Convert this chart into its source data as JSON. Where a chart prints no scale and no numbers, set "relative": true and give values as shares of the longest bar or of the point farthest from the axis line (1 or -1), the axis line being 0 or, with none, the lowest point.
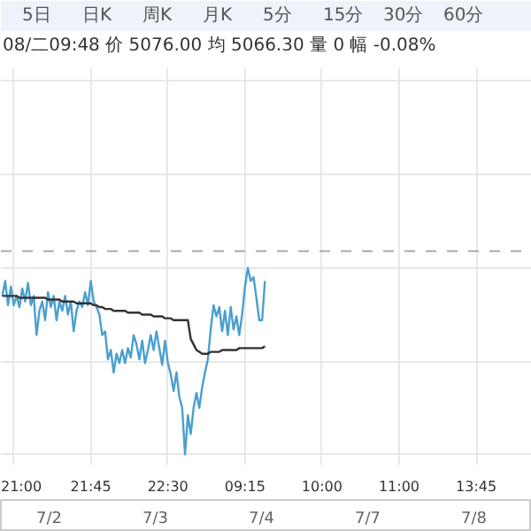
{
  "chart_data": {
    "type": "line",
    "relative": true,
    "categories": [
      null,
      null,
      null,
      null,
      "21:00",
      null,
      null,
      null,
      null,
      null,
      null,
      null,
      null,
      null,
      null,
      null,
      null,
      null,
      null,
      null,
      null,
      null,
      null,
      null,
      null,
      null,
      null,
      null,
      null,
      null,
      null,
      "21:45",
      null,
      null,
      null,
      null,
      null,
      null,
      null,
      null,
      null,
      null,
      null,
      null,
      null,
      null,
      null,
      null,
      null,
      null,
      null,
      null,
      null,
      null,
      null,
      null,
      null,
      null,
      "22:30",
      null,
      null,
      null,
      null,
      null,
      null,
      null,
      null,
      null,
      null,
      null,
      null,
      null,
      null,
      null,
      null,
      null,
      null,
      null,
      null,
      null,
      null,
      null,
      null,
      null,
      null,
      "09:15",
      null,
      null,
      null,
      null,
      null,
      null,
      null,
      null,
      null,
      null,
      null,
      null,
      null,
      null,
      null,
      null,
      null,
      null,
      null,
      null,
      null,
      null,
      null,
      null,
      null,
      null,
      "10:00",
      null,
      null,
      null,
      null,
      null,
      null,
      null,
      null,
      null,
      null,
      null,
      null,
      null,
      null,
      null,
      null,
      null,
      null,
      null,
      null,
      null,
      null,
      null,
      null,
      null,
      null,
      "11:00",
      null,
      null,
      null,
      null,
      null,
      null,
      null,
      null,
      null,
      null,
      null,
      null,
      null,
      null,
      null,
      null,
      null,
      null,
      null,
      null,
      null,
      null,
      null,
      null,
      null,
      null,
      "13:45",
      null,
      null,
      null,
      null,
      null,
      null,
      null,
      null,
      null,
      null,
      null,
      null,
      null,
      null,
      null,
      null,
      null,
      null,
      null
    ],
    "series": [
      {
        "color": "#4a9fd0",
        "values": [
          0.85,
          0.93,
          0.8,
          0.9,
          0.8,
          0.85,
          0.79,
          0.89,
          0.82,
          0.92,
          0.8,
          0.85,
          0.64,
          0.77,
          0.82,
          0.72,
          0.87,
          0.79,
          0.85,
          0.72,
          0.82,
          0.77,
          0.85,
          0.75,
          0.82,
          0.66,
          0.77,
          0.82,
          0.79,
          0.87,
          0.8,
          0.93,
          0.82,
          0.79,
          0.75,
          0.64,
          0.66,
          0.51,
          0.56,
          0.44,
          0.54,
          0.49,
          0.56,
          0.49,
          0.57,
          0.52,
          0.64,
          0.59,
          0.51,
          0.61,
          0.49,
          0.56,
          0.64,
          0.56,
          0.66,
          0.57,
          0.48,
          0.61,
          0.49,
          0.43,
          0.34,
          0.44,
          0.31,
          0.25,
          0,
          0.21,
          0.11,
          0.25,
          0.33,
          0.25,
          0.36,
          0.44,
          0.51,
          0.67,
          0.8,
          0.74,
          0.79,
          0.66,
          0.77,
          0.64,
          0.79,
          0.67,
          0.74,
          0.64,
          0.75,
          0.9,
          1,
          0.93,
          0.95,
          0.84,
          0.72,
          0.72,
          0.93,
          null,
          null,
          null,
          null,
          null,
          null,
          null,
          null,
          null,
          null,
          null,
          null,
          null,
          null,
          null,
          null,
          null,
          null,
          null,
          null,
          null,
          null,
          null,
          null,
          null,
          null,
          null,
          null,
          null,
          null,
          null,
          null,
          null,
          null,
          null,
          null,
          null,
          null,
          null,
          null,
          null,
          null,
          null,
          null,
          null,
          null,
          null,
          null,
          null,
          null,
          null,
          null,
          null,
          null,
          null,
          null,
          null,
          null,
          null,
          null,
          null,
          null,
          null,
          null,
          null,
          null,
          null,
          null,
          null,
          null,
          null,
          null,
          null,
          null,
          null,
          null,
          null,
          null,
          null,
          null,
          null,
          null,
          null,
          null,
          null,
          null,
          null,
          null,
          null,
          null,
          null,
          null,
          null
        ]
      },
      {
        "color": "#333333",
        "values": [
          0.85,
          0.85,
          0.85,
          0.85,
          0.85,
          0.85,
          0.84,
          0.84,
          0.84,
          0.84,
          0.84,
          0.84,
          0.84,
          0.84,
          0.84,
          0.84,
          0.83,
          0.83,
          0.83,
          0.83,
          0.83,
          0.82,
          0.82,
          0.82,
          0.82,
          0.82,
          0.81,
          0.81,
          0.81,
          0.81,
          0.81,
          0.81,
          0.8,
          0.8,
          0.79,
          0.79,
          0.78,
          0.78,
          0.78,
          0.77,
          0.77,
          0.77,
          0.77,
          0.77,
          0.76,
          0.76,
          0.76,
          0.76,
          0.76,
          0.75,
          0.75,
          0.75,
          0.75,
          0.74,
          0.74,
          0.74,
          0.74,
          0.73,
          0.73,
          0.73,
          0.72,
          0.72,
          0.72,
          0.72,
          0.72,
          0.72,
          0.62,
          0.59,
          0.56,
          0.55,
          0.54,
          0.54,
          0.54,
          0.55,
          0.55,
          0.55,
          0.55,
          0.56,
          0.56,
          0.56,
          0.56,
          0.56,
          0.56,
          0.57,
          0.57,
          0.57,
          0.57,
          0.57,
          0.57,
          0.57,
          0.57,
          0.57,
          0.58,
          null,
          null,
          null,
          null,
          null,
          null,
          null,
          null,
          null,
          null,
          null,
          null,
          null,
          null,
          null,
          null,
          null,
          null,
          null,
          null,
          null,
          null,
          null,
          null,
          null,
          null,
          null,
          null,
          null,
          null,
          null,
          null,
          null,
          null,
          null,
          null,
          null,
          null,
          null,
          null,
          null,
          null,
          null,
          null,
          null,
          null,
          null,
          null,
          null,
          null,
          null,
          null,
          null,
          null,
          null,
          null,
          null,
          null,
          null,
          null,
          null,
          null,
          null,
          null,
          null,
          null,
          null,
          null,
          null,
          null,
          null,
          null,
          null,
          null,
          null,
          null,
          null,
          null,
          null,
          null,
          null,
          null,
          null,
          null,
          null,
          null,
          null,
          null,
          null,
          null,
          null,
          null,
          null
        ]
      }
    ],
    "ref_lines": [
      {
        "axis": "y",
        "value": 1.09,
        "label": null,
        "color": "#aaaaaa",
        "line_style": "dashed"
      }
    ],
    "grid": true,
    "marker": "none",
    "line_style": "solid",
    "tick_labels": "x",
    "annotations": [
      "5日",
      "日K",
      "周K",
      "月K",
      "5分",
      "15分",
      "30分",
      "60分",
      "08/二09:48 价 5076.00 均 5066.30 量 0 幅 -0.08%",
      "7/2",
      "7/3",
      "7/4",
      "7/7",
      "7/8"
    ]
  }
}
